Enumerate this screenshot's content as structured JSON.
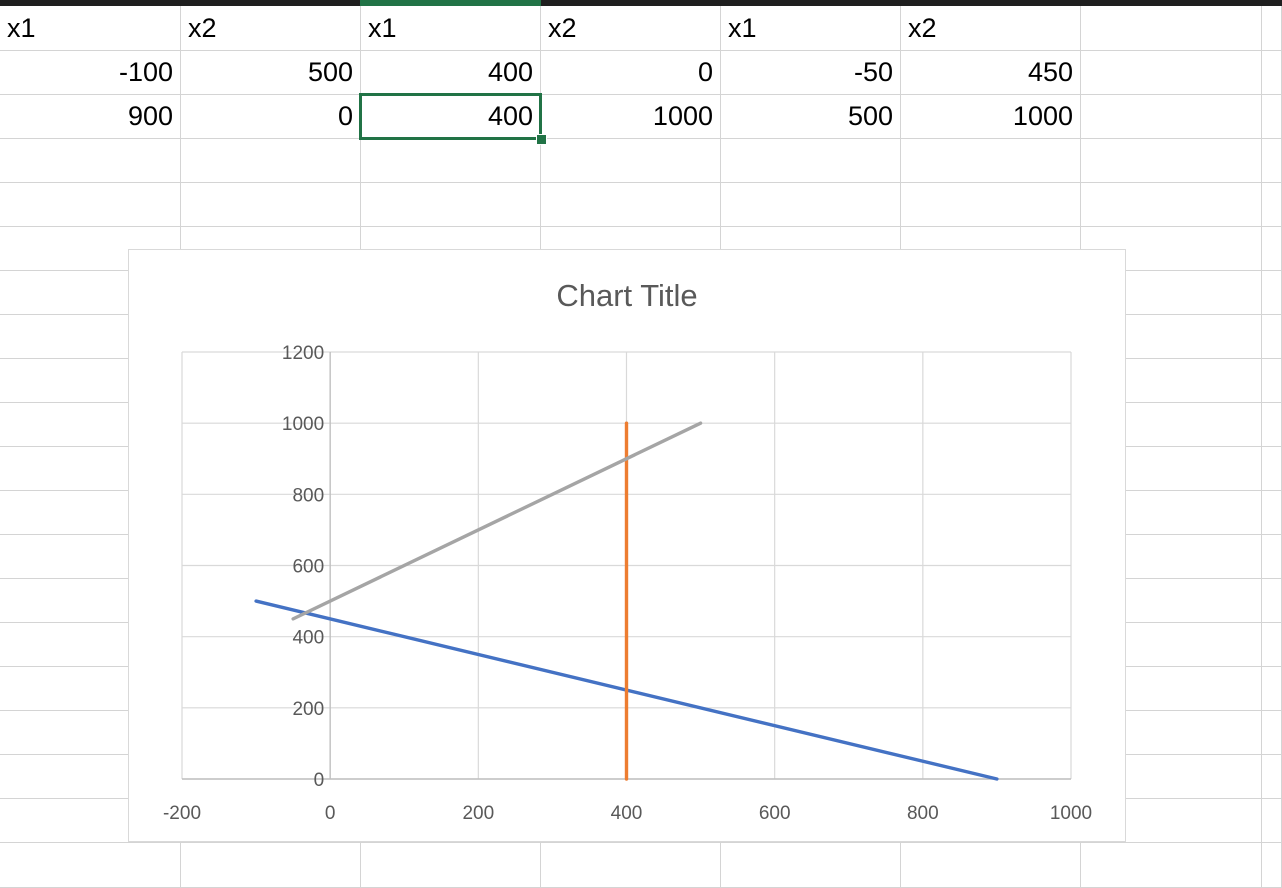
{
  "sheet": {
    "headers": [
      "x1",
      "x2",
      "x1",
      "x2",
      "x1",
      "x2"
    ],
    "rows": [
      [
        "-100",
        "500",
        "400",
        "0",
        "-50",
        "450"
      ],
      [
        "900",
        "0",
        "400",
        "1000",
        "500",
        "1000"
      ]
    ],
    "selected_cell": {
      "row": 2,
      "col": 2
    }
  },
  "chart_data": {
    "type": "scatter",
    "title": "Chart Title",
    "xlabel": "",
    "ylabel": "",
    "xlim": [
      -200,
      1000
    ],
    "ylim": [
      0,
      1200
    ],
    "x_ticks": [
      -200,
      0,
      200,
      400,
      600,
      800,
      1000
    ],
    "y_ticks": [
      0,
      200,
      400,
      600,
      800,
      1000,
      1200
    ],
    "grid": true,
    "legend": "none",
    "series": [
      {
        "x": [
          -100,
          900
        ],
        "y": [
          500,
          0
        ],
        "color": "#4472C4"
      },
      {
        "x": [
          400,
          400
        ],
        "y": [
          0,
          1000
        ],
        "color": "#ED7D31"
      },
      {
        "x": [
          -50,
          500
        ],
        "y": [
          450,
          1000
        ],
        "color": "#A5A5A5"
      }
    ]
  }
}
